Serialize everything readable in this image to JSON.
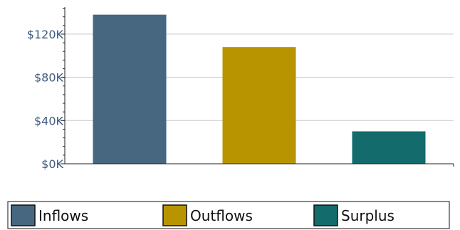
{
  "chart_data": {
    "type": "bar",
    "categories": [
      "Inflows",
      "Outflows",
      "Surplus"
    ],
    "values": [
      138000,
      108000,
      30000
    ],
    "colors": [
      "#46677f",
      "#b89500",
      "#136b6b"
    ],
    "ylim": [
      0,
      145000
    ],
    "yticks": [
      0,
      40000,
      80000,
      120000
    ],
    "ytick_labels": [
      "$0K",
      "$40K",
      "$80K",
      "$120K"
    ],
    "grid": true,
    "legend": {
      "placement": "bottom",
      "entries": [
        "Inflows",
        "Outflows",
        "Surplus"
      ]
    }
  }
}
